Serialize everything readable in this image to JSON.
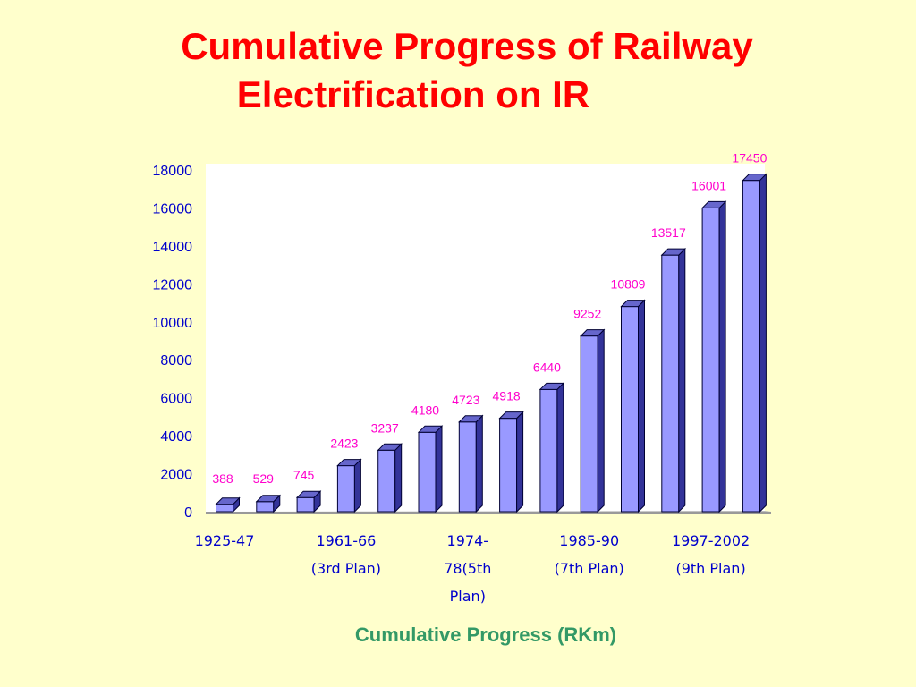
{
  "title_lines": [
    "Cumulative Progress of Railway",
    "Electrification on IR"
  ],
  "chart_data": {
    "type": "bar",
    "title": "Cumulative Progress of Railway Electrification on IR",
    "xlabel": "Cumulative Progress (RKm)",
    "ylabel": "",
    "ylim": [
      0,
      18000
    ],
    "yticks": [
      0,
      2000,
      4000,
      6000,
      8000,
      10000,
      12000,
      14000,
      16000,
      18000
    ],
    "values": [
      388,
      529,
      745,
      2423,
      3237,
      4180,
      4723,
      4918,
      6440,
      9252,
      10809,
      13517,
      16001,
      17450
    ],
    "category_labels": [
      {
        "index": 0,
        "lines": [
          "1925-47"
        ]
      },
      {
        "index": 3,
        "lines": [
          "1961-66",
          "(3rd Plan)"
        ]
      },
      {
        "index": 6,
        "lines": [
          "1974-",
          "78(5th",
          "Plan)"
        ]
      },
      {
        "index": 9,
        "lines": [
          "1985-90",
          "(7th Plan)"
        ]
      },
      {
        "index": 12,
        "lines": [
          "1997-2002",
          "(9th Plan)"
        ]
      }
    ],
    "grid": false,
    "legend": "none",
    "colors": {
      "bar_front": "#9999ff",
      "bar_side": "#333399",
      "bar_top": "#6666cc",
      "data_label": "#ff00cc",
      "axis_text": "#0000cc",
      "plot_bg": "#ffffff",
      "floor": "#999999"
    }
  }
}
